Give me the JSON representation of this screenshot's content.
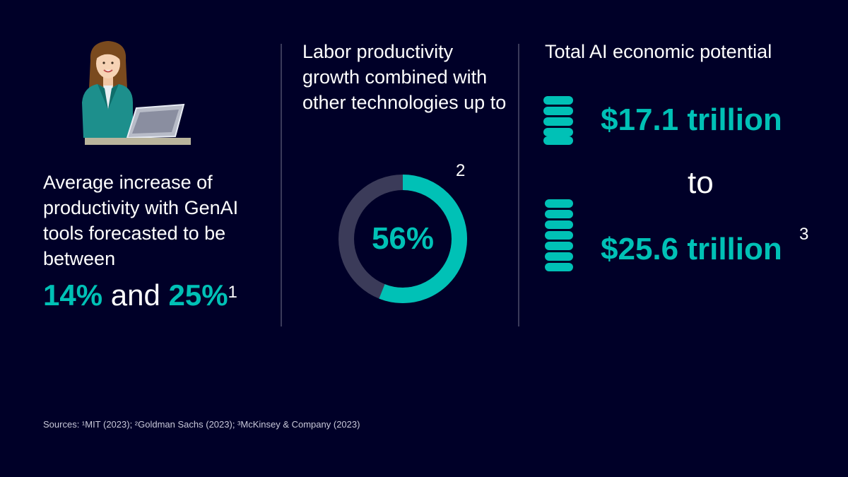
{
  "column1": {
    "description": "Average increase of productivity with GenAI tools forecasted to be between",
    "range_low": "14%",
    "range_joiner": "and",
    "range_high": "25%",
    "footnote": "1"
  },
  "column2": {
    "description": "Labor productivity growth combined with other technologies up to",
    "value_label": "56%",
    "value_fraction": 0.56,
    "footnote": "2"
  },
  "column3": {
    "title": "Total AI economic potential",
    "amount_low": "$17.1 trillion",
    "joiner": "to",
    "amount_high": "$25.6 trillion",
    "footnote": "3"
  },
  "sources": "Sources: ¹MIT (2023); ²Goldman Sachs (2023); ³McKinsey & Company (2023)",
  "colors": {
    "background": "#000028",
    "accent": "#00c1b6",
    "ring_track": "#3b3b59"
  }
}
